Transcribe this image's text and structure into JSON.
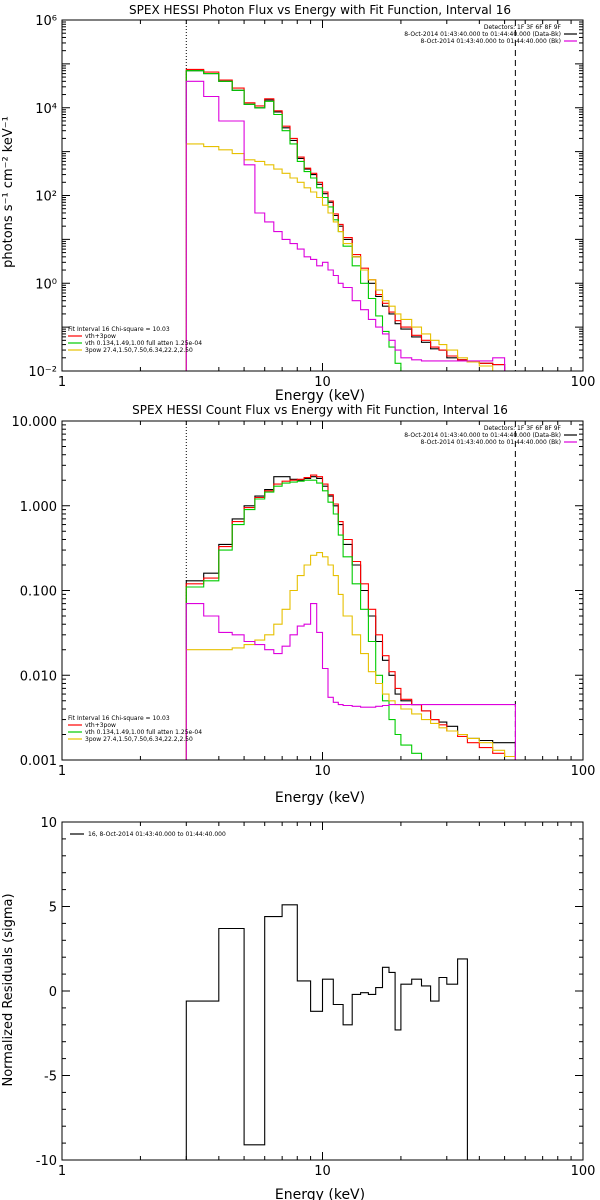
{
  "chart_data": [
    {
      "type": "line",
      "title": "SPEX HESSI Photon Flux vs Energy with Fit Function, Interval 16",
      "xlabel": "Energy (keV)",
      "ylabel": "photons s⁻¹ cm⁻² keV⁻¹",
      "xscale": "log",
      "yscale": "log",
      "xlim": [
        1,
        100
      ],
      "ylim": [
        0.01,
        1000000
      ],
      "xticks": [
        "1",
        "10",
        "100"
      ],
      "yticks": [
        {
          "v": 0.01,
          "label": "10⁻²"
        },
        {
          "v": 1,
          "label": "10⁰"
        },
        {
          "v": 100,
          "label": "10²"
        },
        {
          "v": 10000,
          "label": "10⁴"
        },
        {
          "v": 1000000,
          "label": "10⁶"
        }
      ],
      "vlines": [
        {
          "x": 3,
          "style": "dotted"
        },
        {
          "x": 55,
          "style": "dashed"
        }
      ],
      "legend_topright": [
        "Detectors: 1F 3F 6F 8F 9F",
        "8-Oct-2014 01:43:40.000 to 01:44:40.000 (Data-Bk)",
        "8-Oct-2014 01:43:40.000 to 01:44:40.000 (Bk)"
      ],
      "legend_bottomleft": [
        "Fit Interval 16   Chi-square = 10.03",
        "vth+3pow",
        "vth 0.134,1.49,1.00  full atten 1.25e-04",
        "3pow 27.4,1.50,7.50,6.34,22.2,2.50"
      ],
      "edges": [
        3,
        3.5,
        4,
        4.5,
        5,
        5.5,
        6,
        6.5,
        7,
        7.5,
        8,
        8.5,
        9,
        9.5,
        10,
        10.5,
        11,
        11.5,
        12,
        13,
        14,
        15,
        16,
        17,
        18,
        19,
        20,
        22,
        24,
        26,
        28,
        30,
        33,
        36,
        40,
        45,
        50,
        55
      ],
      "series": [
        {
          "name": "Data-Bk",
          "color": "#000000",
          "values": [
            70000,
            60000,
            40000,
            25000,
            12000,
            10000,
            15000,
            8000,
            3500,
            1800,
            700,
            400,
            300,
            180,
            110,
            70,
            35,
            20,
            10,
            4,
            2,
            1,
            0.5,
            0.3,
            0.2,
            0.12,
            0.09,
            0.06,
            0.045,
            0.032,
            0.03,
            0.02,
            0.018,
            0.016,
            0.015,
            0.014
          ]
        },
        {
          "name": "vth+3pow",
          "color": "#ff0000",
          "values": [
            75000,
            65000,
            43000,
            28000,
            13000,
            11000,
            16000,
            8500,
            3800,
            2000,
            750,
            420,
            320,
            200,
            120,
            75,
            38,
            22,
            11,
            4.5,
            2.2,
            1.2,
            0.55,
            0.35,
            0.22,
            0.14,
            0.1,
            0.065,
            0.05,
            0.035,
            0.03,
            0.022,
            0.018,
            0.016,
            0.015,
            0.014
          ]
        },
        {
          "name": "vth",
          "color": "#00cc00",
          "values": [
            70000,
            60000,
            40000,
            25000,
            12000,
            10000,
            14000,
            7000,
            3000,
            1500,
            600,
            350,
            250,
            150,
            90,
            55,
            28,
            15,
            7,
            2.5,
            1,
            0.45,
            0.18,
            0.08,
            0.035,
            0.015,
            0.009,
            0.007,
            0.006,
            0.005,
            0.005,
            0.005,
            0.005,
            0.005,
            0.005,
            0.005
          ]
        },
        {
          "name": "3pow",
          "color": "#e6c000",
          "values": [
            1500,
            1300,
            1100,
            900,
            650,
            600,
            500,
            400,
            320,
            250,
            200,
            150,
            120,
            90,
            60,
            40,
            25,
            15,
            8,
            4,
            2,
            1.2,
            0.7,
            0.4,
            0.3,
            0.2,
            0.15,
            0.1,
            0.07,
            0.05,
            0.04,
            0.03,
            0.02,
            0.016,
            0.013,
            0.01
          ]
        },
        {
          "name": "Bk",
          "color": "#dd00dd",
          "values": [
            40000,
            18000,
            5000,
            5000,
            500,
            40,
            25,
            15,
            10,
            8,
            6,
            4,
            3.5,
            2.5,
            3,
            2,
            1.5,
            1,
            0.8,
            0.4,
            0.25,
            0.15,
            0.1,
            0.07,
            0.05,
            0.03,
            0.02,
            0.018,
            0.017,
            0.017,
            0.017,
            0.017,
            0.017,
            0.017,
            0.017,
            0.02
          ]
        }
      ]
    },
    {
      "type": "line",
      "title": "SPEX HESSI Count Flux vs Energy with Fit Function, Interval 16",
      "xlabel": "Energy (keV)",
      "ylabel": "",
      "xscale": "log",
      "yscale": "log",
      "xlim": [
        1,
        100
      ],
      "ylim": [
        0.001,
        10
      ],
      "xticks": [
        "1",
        "10",
        "100"
      ],
      "yticks": [
        {
          "v": 0.001,
          "label": "0.001"
        },
        {
          "v": 0.01,
          "label": "0.010"
        },
        {
          "v": 0.1,
          "label": "0.100"
        },
        {
          "v": 1,
          "label": "1.000"
        },
        {
          "v": 10,
          "label": "10.000"
        }
      ],
      "vlines": [
        {
          "x": 3,
          "style": "dotted"
        },
        {
          "x": 55,
          "style": "dashed"
        }
      ],
      "legend_topright": [
        "Detectors: 1F 3F 6F 8F 9F",
        "8-Oct-2014 01:43:40.000 to 01:44:40.000 (Data-Bk)",
        "8-Oct-2014 01:43:40.000 to 01:44:40.000 (Bk)"
      ],
      "legend_bottomleft": [
        "Fit Interval 16   Chi-square = 10.03",
        "vth+3pow",
        "vth 0.134,1.49,1.00  full atten 1.25e-04",
        "3pow 27.4,1.50,7.50,6.34,22.2,2.50"
      ],
      "edges": [
        3,
        3.5,
        4,
        4.5,
        5,
        5.5,
        6,
        6.5,
        7,
        7.5,
        8,
        8.5,
        9,
        9.5,
        10,
        10.5,
        11,
        11.5,
        12,
        13,
        14,
        15,
        16,
        17,
        18,
        19,
        20,
        22,
        24,
        26,
        28,
        30,
        33,
        36,
        40,
        45,
        50,
        55,
        60,
        66
      ],
      "series": [
        {
          "name": "Data-Bk",
          "color": "#000000",
          "values": [
            0.13,
            0.16,
            0.35,
            0.7,
            1.0,
            1.3,
            1.55,
            2.2,
            2.2,
            2.05,
            2.0,
            2.1,
            2.2,
            2.1,
            1.7,
            1.3,
            1.0,
            0.6,
            0.35,
            0.2,
            0.1,
            0.05,
            0.025,
            0.015,
            0.01,
            0.006,
            0.005,
            0.0045,
            0.0038,
            0.003,
            0.0028,
            0.0025,
            0.002,
            0.0018,
            0.0017,
            0.0016,
            0.0016
          ]
        },
        {
          "name": "vth+3pow",
          "color": "#ff0000",
          "values": [
            0.12,
            0.14,
            0.33,
            0.65,
            0.95,
            1.25,
            1.5,
            1.8,
            1.95,
            2.0,
            2.05,
            2.15,
            2.3,
            2.2,
            1.8,
            1.35,
            1.05,
            0.65,
            0.4,
            0.22,
            0.12,
            0.06,
            0.03,
            0.017,
            0.011,
            0.007,
            0.0052,
            0.0045,
            0.0038,
            0.003,
            0.0026,
            0.0022,
            0.0019,
            0.0016,
            0.0014,
            0.0012,
            0.0011
          ]
        },
        {
          "name": "vth",
          "color": "#00cc00",
          "values": [
            0.11,
            0.13,
            0.3,
            0.6,
            0.9,
            1.2,
            1.45,
            1.7,
            1.85,
            1.9,
            1.95,
            2.0,
            2.0,
            1.85,
            1.5,
            1.1,
            0.8,
            0.45,
            0.25,
            0.12,
            0.06,
            0.025,
            0.01,
            0.005,
            0.003,
            0.002,
            0.0015,
            0.0012,
            0.001,
            0.001,
            0.001,
            0.001,
            0.001,
            0.001,
            0.001,
            0.001,
            0.001
          ]
        },
        {
          "name": "3pow",
          "color": "#e6c000",
          "values": [
            0.02,
            0.02,
            0.02,
            0.021,
            0.023,
            0.026,
            0.03,
            0.04,
            0.06,
            0.1,
            0.15,
            0.2,
            0.26,
            0.28,
            0.25,
            0.2,
            0.15,
            0.09,
            0.05,
            0.03,
            0.018,
            0.011,
            0.008,
            0.006,
            0.005,
            0.0045,
            0.004,
            0.0035,
            0.003,
            0.0027,
            0.0024,
            0.0022,
            0.002,
            0.0018,
            0.0016,
            0.0013,
            0.0011
          ]
        },
        {
          "name": "Bk",
          "color": "#dd00dd",
          "values": [
            0.07,
            0.05,
            0.032,
            0.03,
            0.025,
            0.023,
            0.02,
            0.018,
            0.022,
            0.03,
            0.038,
            0.04,
            0.07,
            0.032,
            0.012,
            0.0055,
            0.0048,
            0.0045,
            0.0044,
            0.0043,
            0.0042,
            0.0042,
            0.0043,
            0.0044,
            0.0045,
            0.0045,
            0.0045,
            0.0045,
            0.0045,
            0.0045,
            0.0045,
            0.0045,
            0.0045,
            0.0045,
            0.0045,
            0.0045,
            0.0045
          ]
        }
      ]
    },
    {
      "type": "line",
      "title": "",
      "xlabel": "Energy (keV)",
      "ylabel": "Normalized Residuals (sigma)",
      "xscale": "log",
      "yscale": "linear",
      "xlim": [
        1,
        100
      ],
      "ylim": [
        -10,
        10
      ],
      "xticks": [
        "1",
        "10",
        "100"
      ],
      "yticks": [
        {
          "v": -10,
          "label": "-10"
        },
        {
          "v": -5,
          "label": "-5"
        },
        {
          "v": 0,
          "label": "0"
        },
        {
          "v": 5,
          "label": "5"
        },
        {
          "v": 10,
          "label": "10"
        }
      ],
      "legend_topleft": [
        "16,  8-Oct-2014 01:43:40.000 to 01:44:40.000"
      ],
      "edges": [
        3,
        4,
        5,
        6,
        7,
        8,
        9,
        10,
        11,
        12,
        13,
        14,
        15,
        16,
        17,
        18,
        19,
        20,
        22,
        24,
        26,
        28,
        30,
        33,
        36,
        40,
        45,
        50,
        55
      ],
      "series": [
        {
          "name": "",
          "color": "#000000",
          "values": [
            -0.6,
            3.7,
            -9.1,
            4.4,
            5.1,
            0.6,
            -1.2,
            0.7,
            -0.8,
            -2.0,
            -0.2,
            -0.1,
            -0.2,
            0.2,
            1.4,
            1.1,
            -2.3,
            0.4,
            0.7,
            0.3,
            -0.6,
            0.8,
            0.4,
            1.9,
            -10,
            -10,
            -10,
            -10
          ]
        }
      ]
    }
  ]
}
